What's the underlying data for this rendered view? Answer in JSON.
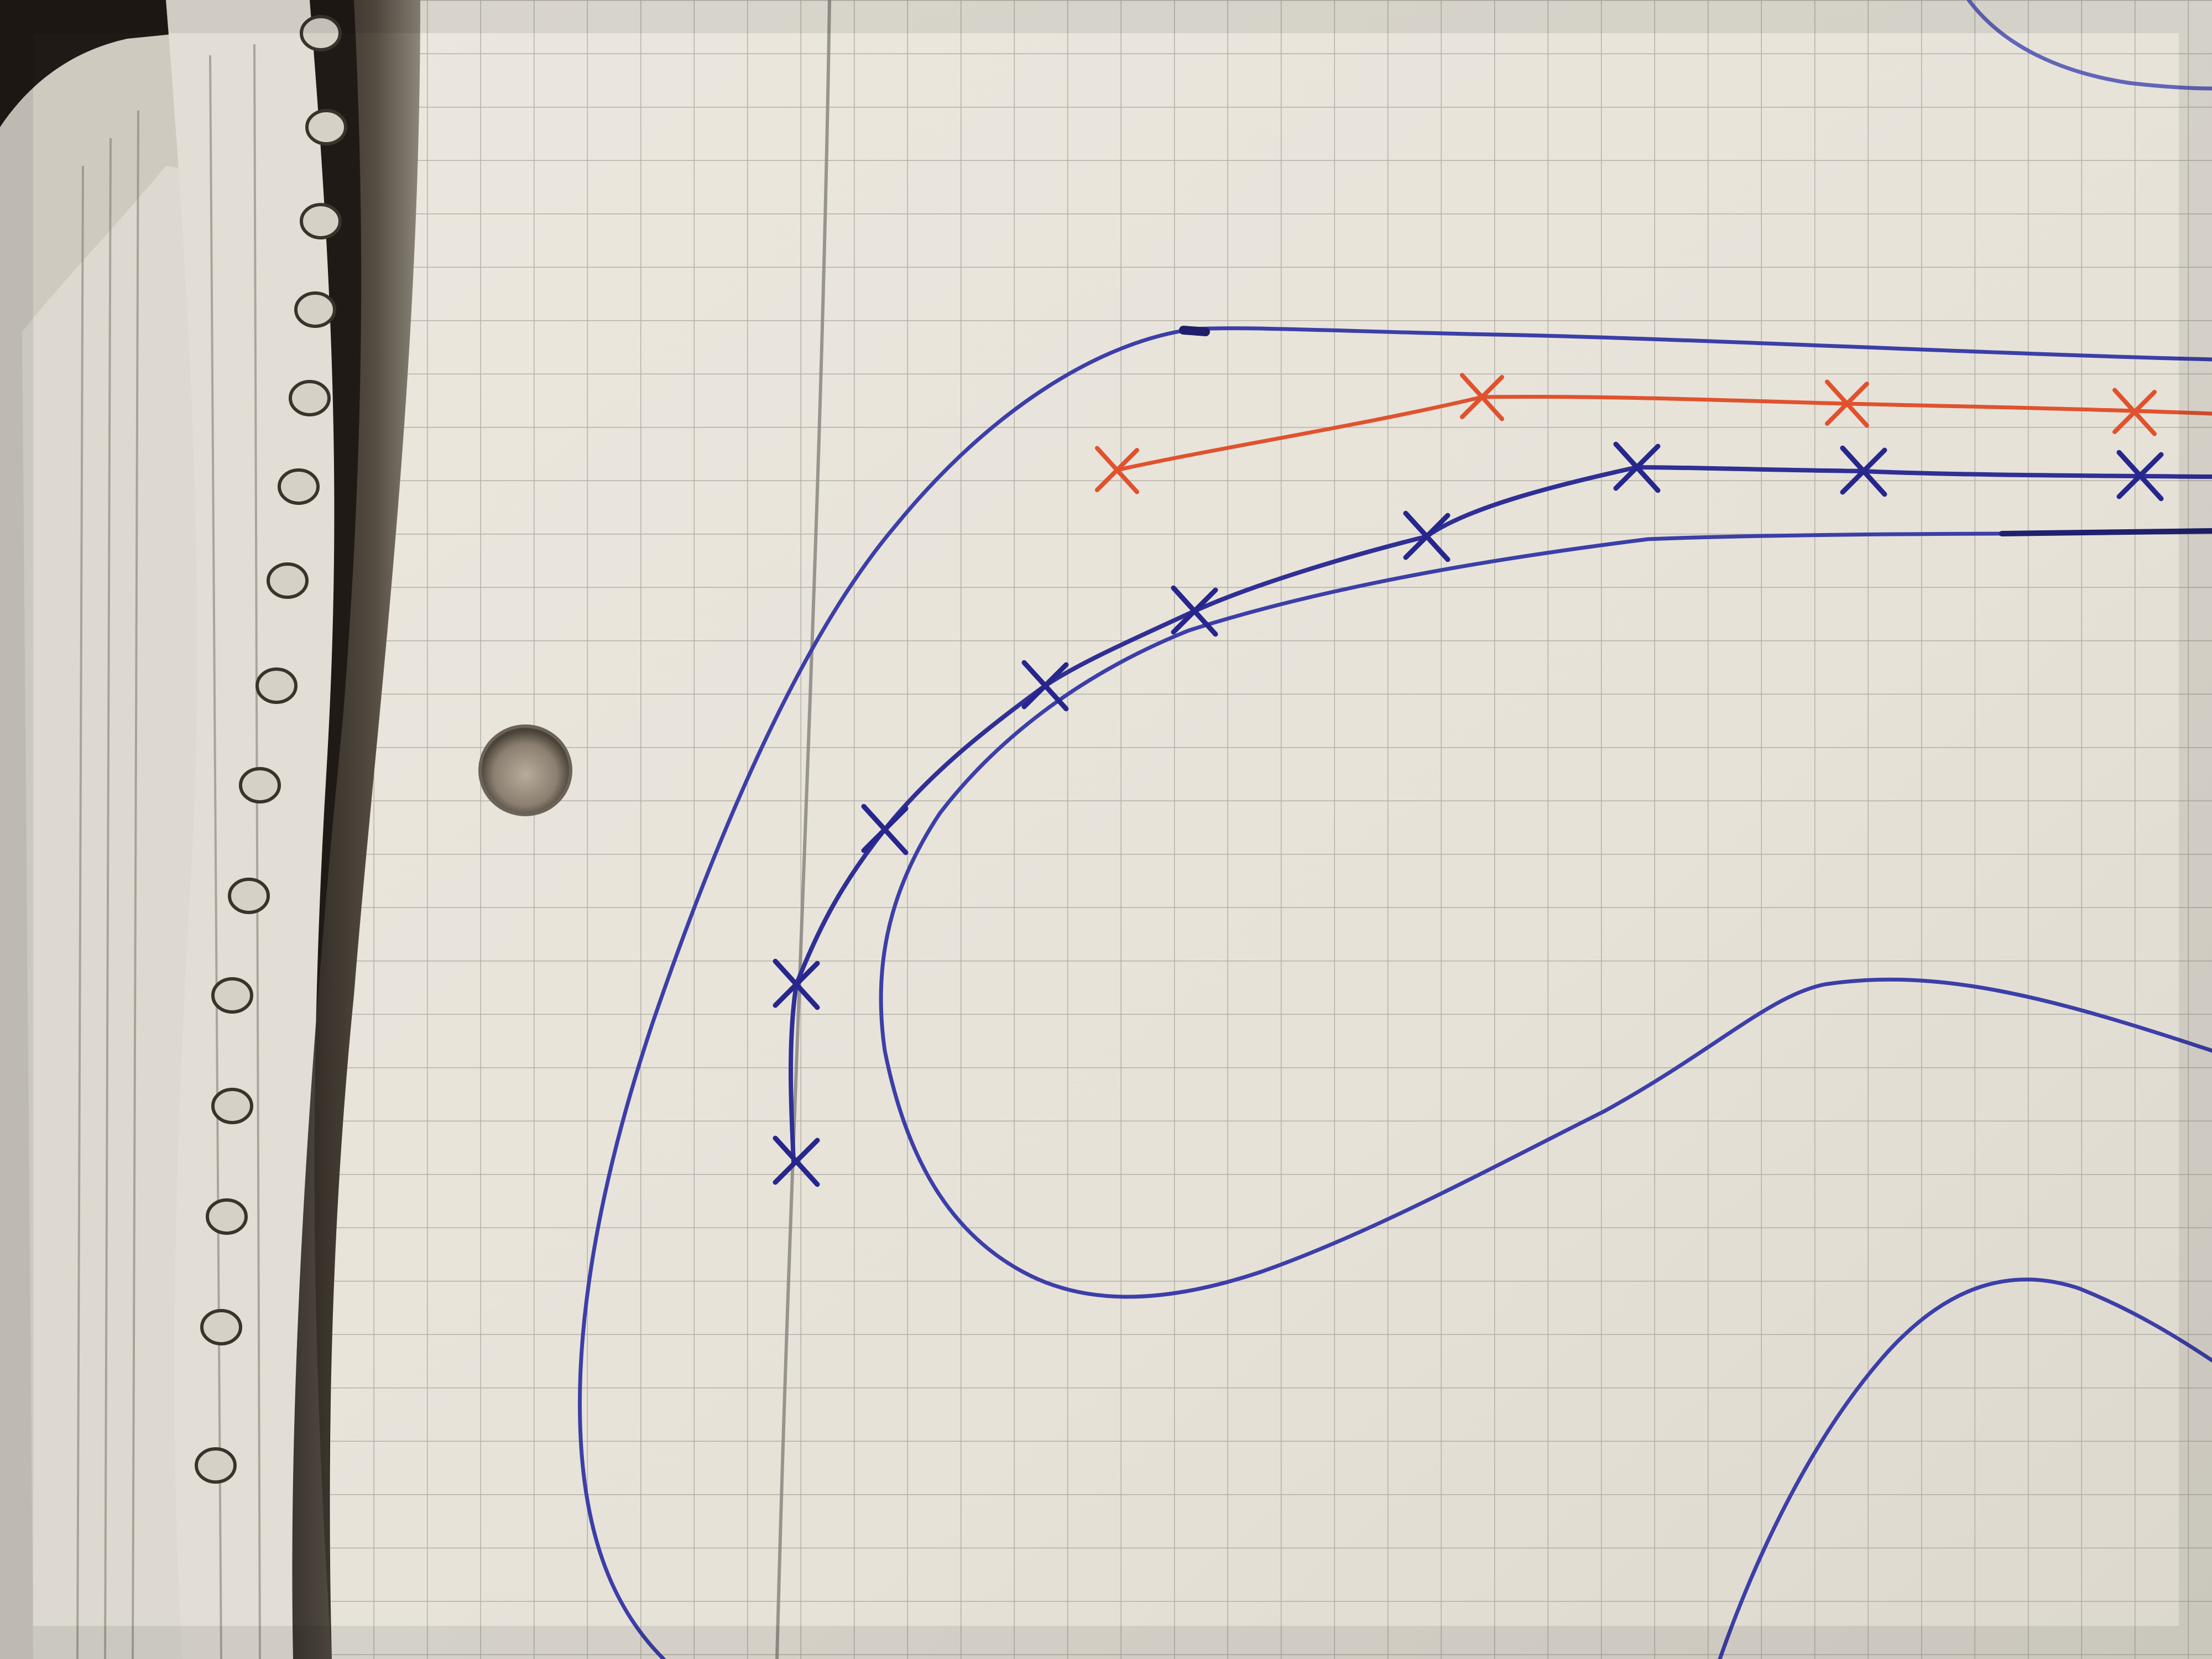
{
  "scene": {
    "subject": "notebook-page-with-pen-drawn-curves",
    "paper_color": "#e9e5dc",
    "grid_color": "#9c9890",
    "margin_line_color": "#8a8680",
    "ink_blue": "#3c3fa8",
    "ink_blue_dark": "#2a2a8c",
    "ink_red": "#e0522e",
    "shadow_color": "#1a1612",
    "spiral_color": "#d8d4cc"
  },
  "elements": [
    {
      "name": "outer-curve",
      "ink": "blue",
      "kind": "line"
    },
    {
      "name": "inner-curve",
      "ink": "blue",
      "kind": "line"
    },
    {
      "name": "marked-path-blue",
      "ink": "blue",
      "kind": "line-with-x-marks",
      "mark_count": 10
    },
    {
      "name": "marked-path-red",
      "ink": "red",
      "kind": "line-with-x-marks",
      "mark_count": 4
    },
    {
      "name": "lower-right-curve",
      "ink": "blue",
      "kind": "line"
    },
    {
      "name": "bottom-right-curve",
      "ink": "blue",
      "kind": "line"
    },
    {
      "name": "top-right-curve",
      "ink": "blue",
      "kind": "line"
    },
    {
      "name": "punched-hole",
      "kind": "hole"
    }
  ]
}
